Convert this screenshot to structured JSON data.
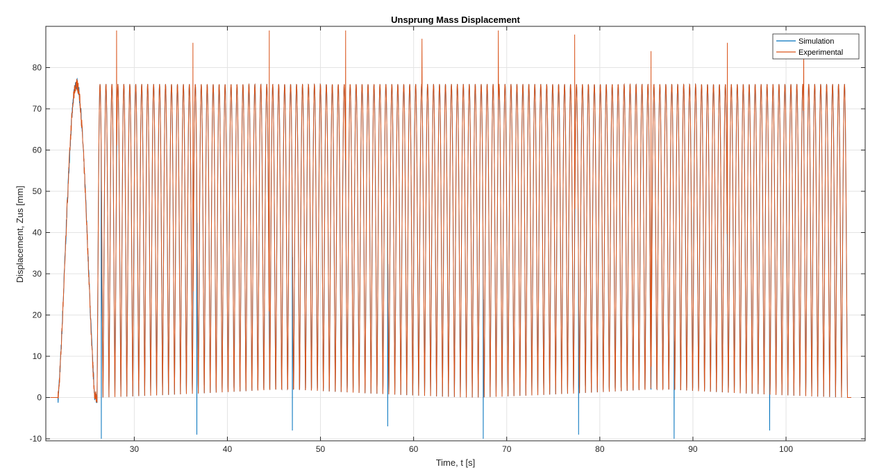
{
  "chart_data": {
    "type": "line",
    "title": "Unsprung Mass Displacement",
    "xlabel": "Time, t [s]",
    "ylabel": "Displacement, Zus [mm]",
    "xlim": [
      20.5,
      108.5
    ],
    "ylim": [
      -10.5,
      90
    ],
    "xticks": [
      30,
      40,
      50,
      60,
      70,
      80,
      90,
      100
    ],
    "yticks": [
      -10,
      0,
      10,
      20,
      30,
      40,
      50,
      60,
      70,
      80
    ],
    "grid": true,
    "legend_position": "top-right",
    "signal": {
      "start_time": 21,
      "end_time": 107,
      "initial_cycle_peak_time": 23.8,
      "initial_cycle_start": 21.8,
      "initial_cycle_end": 25.8,
      "cycle_count": 126,
      "cycles_start": 26.0,
      "cycles_end": 106.6,
      "baseline": 0,
      "peak_value": 76,
      "experimental_spike_peaks": [
        89,
        86,
        89,
        89,
        87,
        89,
        88,
        84,
        86,
        87
      ],
      "simulation_negative_dips": [
        -10,
        -9,
        -8,
        -7,
        -10,
        -9,
        -10,
        -8
      ]
    },
    "series": [
      {
        "name": "Simulation",
        "color": "#0072BD"
      },
      {
        "name": "Experimental",
        "color": "#D95319"
      }
    ]
  }
}
